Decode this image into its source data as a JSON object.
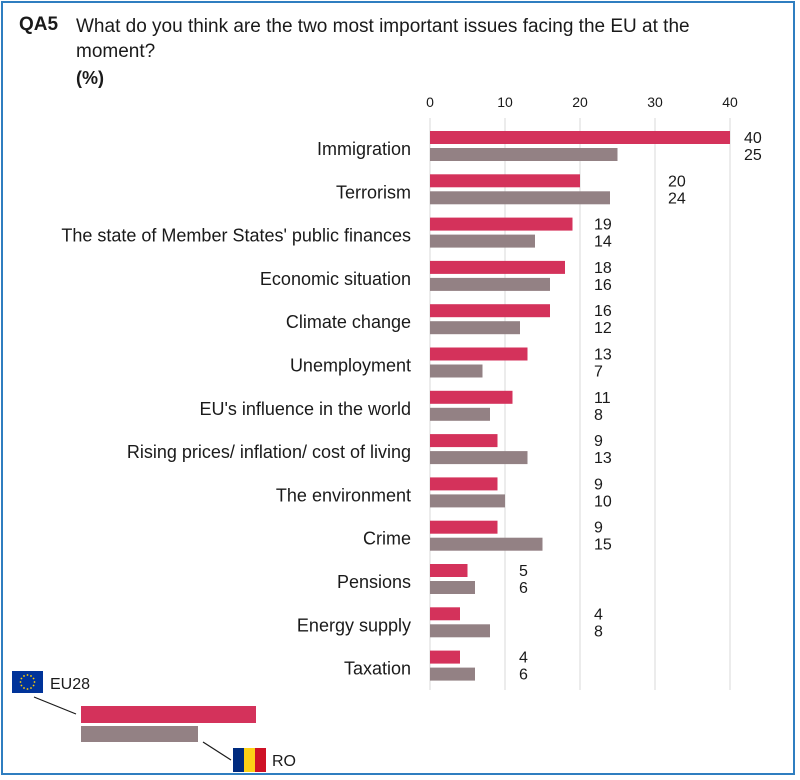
{
  "question": {
    "id": "QA5",
    "text": "What do you think are the two most important issues facing the EU at the moment?",
    "unit": "(%)"
  },
  "colors": {
    "eu28": "#d4325b",
    "ro": "#938184",
    "grid": "#d9d9d9",
    "frame": "#2f7ec0"
  },
  "chart_data": {
    "type": "bar",
    "orientation": "horizontal",
    "xlim": [
      0,
      40
    ],
    "ticks": [
      0,
      10,
      20,
      30,
      40
    ],
    "categories": [
      "Immigration",
      "Terrorism",
      "The state of Member States' public finances",
      "Economic situation",
      "Climate change",
      "Unemployment",
      "EU's influence in the world",
      "Rising prices/ inflation/ cost of living",
      "The environment",
      "Crime",
      "Pensions",
      "Energy supply",
      "Taxation"
    ],
    "series": [
      {
        "name": "EU28",
        "values": [
          40,
          20,
          19,
          18,
          16,
          13,
          11,
          9,
          9,
          9,
          5,
          4,
          4
        ]
      },
      {
        "name": "RO",
        "values": [
          25,
          24,
          14,
          16,
          12,
          7,
          8,
          13,
          10,
          15,
          6,
          8,
          6
        ]
      }
    ],
    "legend": [
      "EU28",
      "RO"
    ]
  }
}
